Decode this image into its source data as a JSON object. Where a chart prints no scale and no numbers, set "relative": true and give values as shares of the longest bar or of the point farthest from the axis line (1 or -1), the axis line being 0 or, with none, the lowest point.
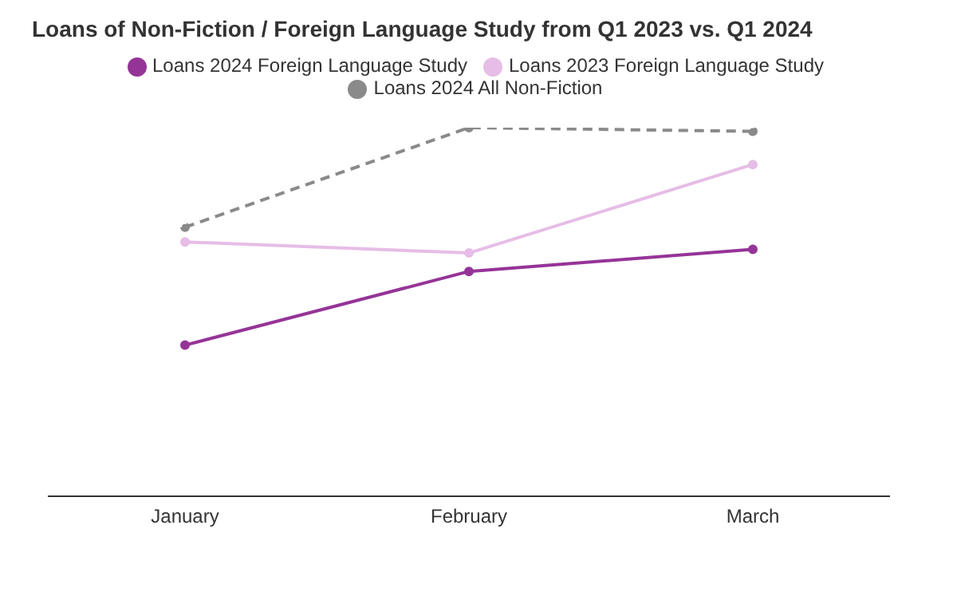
{
  "chart_data": {
    "type": "line",
    "title": "Loans of Non-Fiction / Foreign Language Study from Q1 2023 vs. Q1 2024",
    "categories": [
      "January",
      "February",
      "March"
    ],
    "relative": true,
    "legend": "top",
    "marker": "circle",
    "series": [
      {
        "name": "Loans 2024 Foreign Language Study",
        "color": "#953497",
        "values": [
          0.41,
          0.61,
          0.67
        ]
      },
      {
        "name": "Loans 2023 Foreign Language Study",
        "color": "#e6bde6",
        "values": [
          0.69,
          0.66,
          0.9
        ]
      },
      {
        "name": "Loans 2024 All Non-Fiction",
        "color": "#8a8a8a",
        "values": [
          0.73,
          1,
          0.99
        ],
        "line_style": "dashed"
      }
    ]
  }
}
